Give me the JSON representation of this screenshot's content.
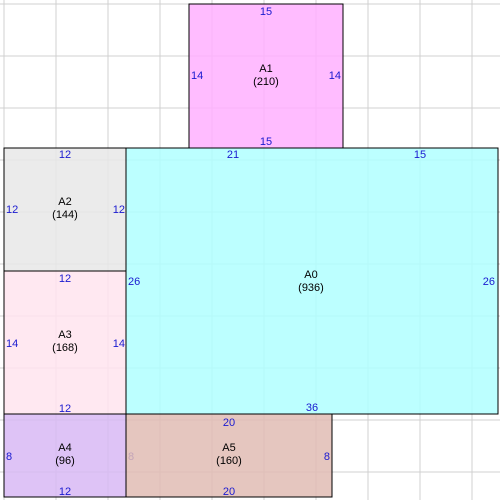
{
  "colors": {
    "background": "#ffffff",
    "grid": "#d0d0d0",
    "outline": "#000000",
    "label": "#000000",
    "dimension": "#1a1ad0"
  },
  "rects": [
    {
      "id": "A0",
      "name": "A0",
      "area": "(936)",
      "fill": "#b0ffff",
      "top": "21",
      "top2": "15",
      "bottom": "36",
      "left": "26",
      "right": "26"
    },
    {
      "id": "A1",
      "name": "A1",
      "area": "(210)",
      "fill": "#ffb0ff",
      "top": "15",
      "bottom": "15",
      "left": "14",
      "right": "14"
    },
    {
      "id": "A2",
      "name": "A2",
      "area": "(144)",
      "fill": "#e8e8e8",
      "top": "12",
      "bottom": "",
      "left": "12",
      "right": "12"
    },
    {
      "id": "A3",
      "name": "A3",
      "area": "(168)",
      "fill": "#ffe4ee",
      "top": "12",
      "bottom": "12",
      "left": "14",
      "right": "14"
    },
    {
      "id": "A4",
      "name": "A4",
      "area": "(96)",
      "fill": "#d8b8f4",
      "top": "",
      "bottom": "12",
      "left": "8",
      "right": "8"
    },
    {
      "id": "A5",
      "name": "A5",
      "area": "(160)",
      "fill": "#e0bcb4",
      "top": "20",
      "bottom": "20",
      "left": "",
      "right": "8"
    }
  ]
}
